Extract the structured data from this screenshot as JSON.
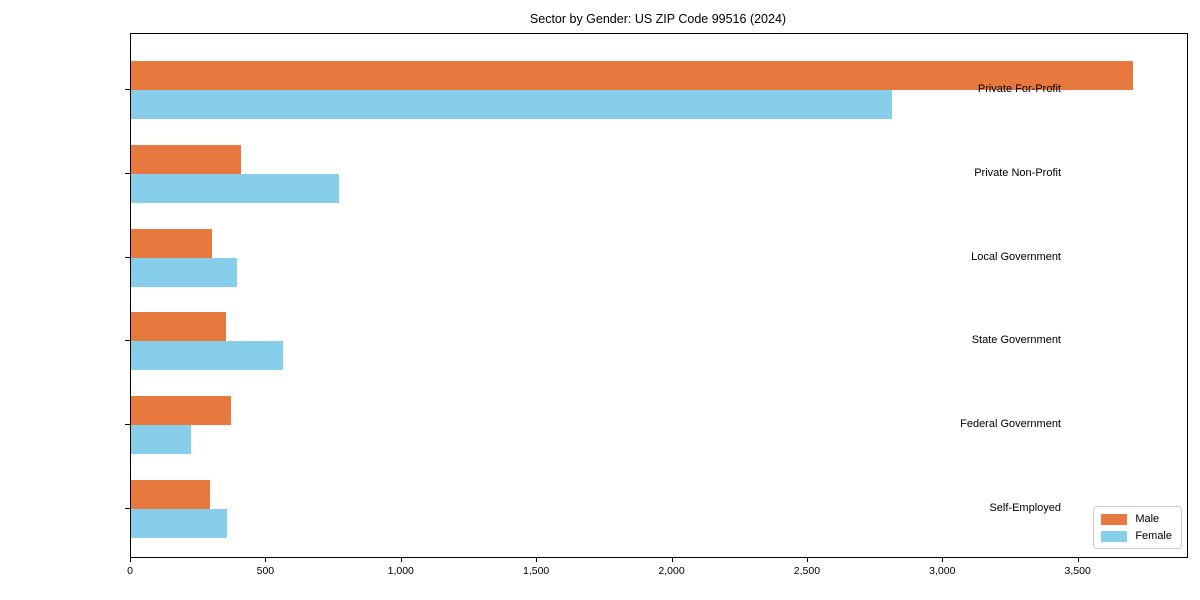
{
  "chart_data": {
    "type": "bar",
    "orientation": "horizontal",
    "title": "Sector by Gender: US ZIP Code 99516 (2024)",
    "categories": [
      "Private For-Profit",
      "Private Non-Profit",
      "Local Government",
      "State Government",
      "Federal Government",
      "Self-Employed"
    ],
    "series": [
      {
        "name": "Male",
        "color": "#e8793e",
        "values": [
          3700,
          405,
          300,
          350,
          370,
          290
        ]
      },
      {
        "name": "Female",
        "color": "#87ceeb",
        "values": [
          2810,
          770,
          390,
          560,
          220,
          355
        ]
      }
    ],
    "xlabel": "",
    "ylabel": "",
    "xlim": [
      0,
      3900
    ],
    "x_ticks": [
      0,
      500,
      1000,
      1500,
      2000,
      2500,
      3000,
      3500
    ],
    "x_tick_labels": [
      "0",
      "500",
      "1,000",
      "1,500",
      "2,000",
      "2,500",
      "3,000",
      "3,500"
    ],
    "grid": false,
    "legend": {
      "position": "lower right",
      "entries": [
        "Male",
        "Female"
      ]
    }
  }
}
